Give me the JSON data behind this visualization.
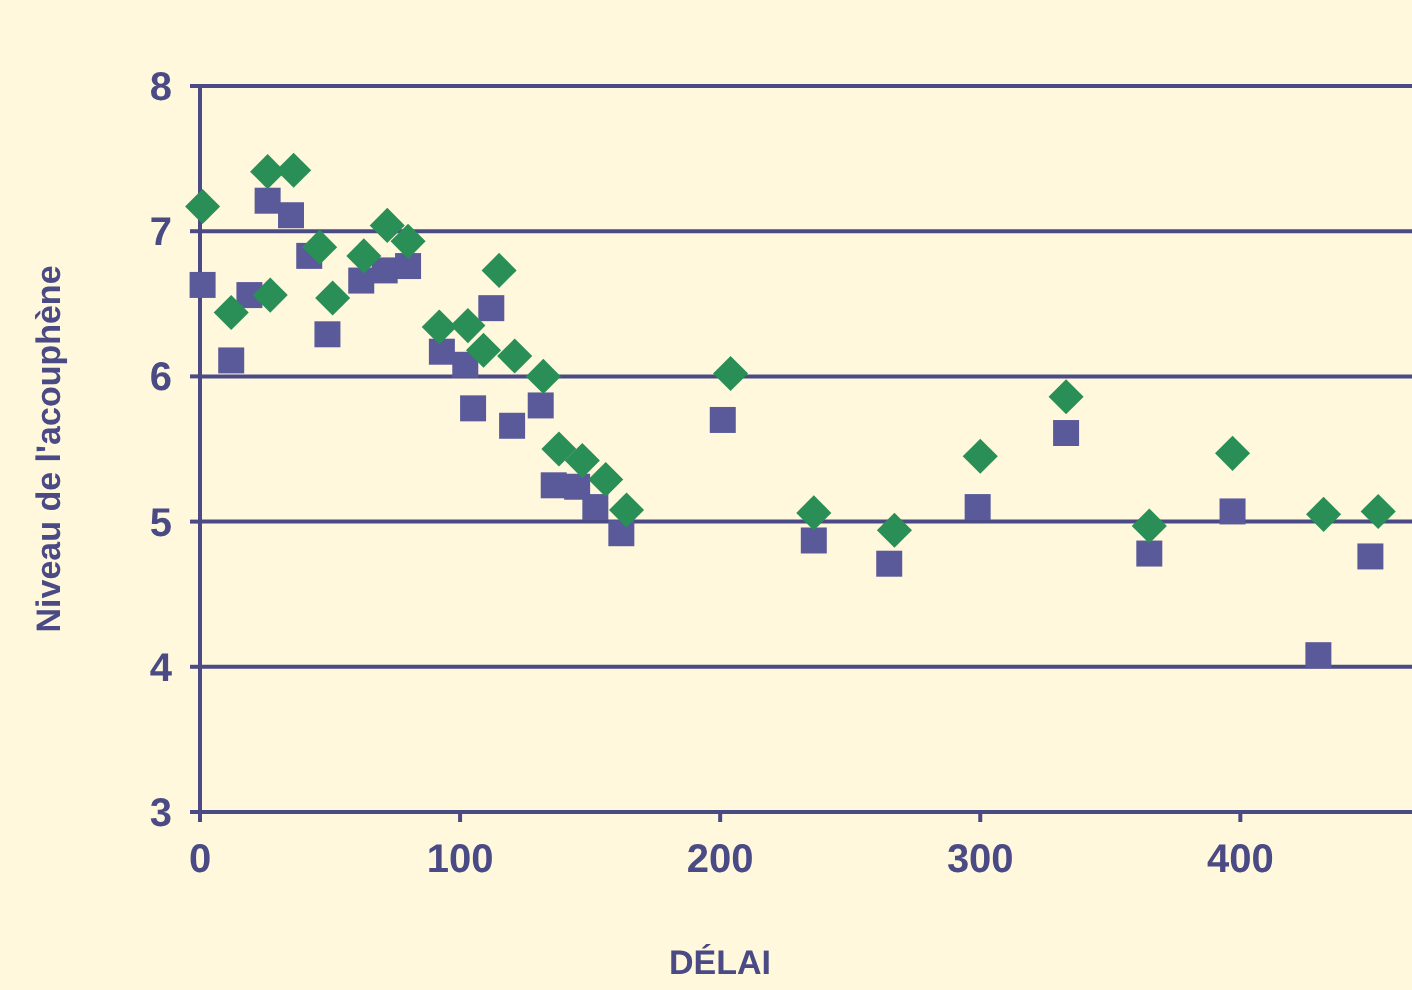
{
  "chart_data": {
    "type": "scatter",
    "xlabel": "DÉLAI",
    "ylabel": "Niveau de l'acouphène",
    "xlim": [
      0,
      466
    ],
    "xticks": [
      0,
      100,
      200,
      300,
      400
    ],
    "ylim": [
      3,
      8
    ],
    "yticks": [
      3,
      4,
      5,
      6,
      7,
      8
    ],
    "grid": "y",
    "series": [
      {
        "color": "#5a5a9a",
        "marker": "square",
        "x": [
          1,
          12,
          19,
          26,
          35,
          42,
          49,
          62,
          71,
          80,
          93,
          102,
          105,
          112,
          120,
          131,
          136,
          145,
          152,
          162,
          201,
          236,
          265,
          299,
          333,
          365,
          397,
          430,
          450
        ],
        "values": [
          6.63,
          6.11,
          6.56,
          7.21,
          7.11,
          6.83,
          6.29,
          6.66,
          6.73,
          6.76,
          6.17,
          6.08,
          5.78,
          6.47,
          5.66,
          5.8,
          5.25,
          5.24,
          5.1,
          4.92,
          5.7,
          4.87,
          4.71,
          5.1,
          5.61,
          4.78,
          5.07,
          4.08,
          4.76
        ]
      },
      {
        "color": "#2a8f57",
        "marker": "diamond",
        "x": [
          1,
          12,
          27,
          26,
          36,
          46,
          51,
          63,
          72,
          80,
          92,
          103,
          109,
          115,
          121,
          132,
          138,
          147,
          156,
          164,
          204,
          236,
          267,
          300,
          333,
          365,
          397,
          432,
          453
        ],
        "values": [
          7.17,
          6.44,
          6.56,
          7.41,
          7.42,
          6.89,
          6.54,
          6.83,
          7.04,
          6.93,
          6.34,
          6.35,
          6.18,
          6.73,
          6.14,
          6.0,
          5.5,
          5.42,
          5.29,
          5.08,
          6.02,
          5.06,
          4.94,
          5.45,
          5.86,
          4.97,
          5.47,
          5.05,
          5.07
        ]
      }
    ]
  }
}
